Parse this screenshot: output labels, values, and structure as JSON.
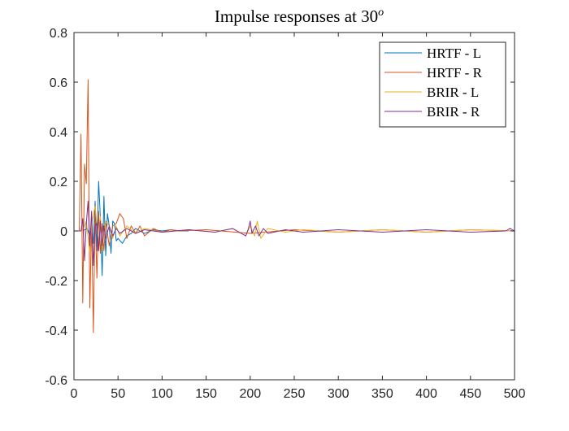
{
  "chart_data": {
    "type": "line",
    "title": "Impulse responses at 30",
    "title_superscript": "o",
    "xlabel": "",
    "ylabel": "",
    "xlim": [
      0,
      500
    ],
    "ylim": [
      -0.6,
      0.8
    ],
    "xticks": [
      0,
      50,
      100,
      150,
      200,
      250,
      300,
      350,
      400,
      450,
      500
    ],
    "yticks": [
      -0.6,
      -0.4,
      -0.2,
      0,
      0.2,
      0.4,
      0.6,
      0.8
    ],
    "xtick_labels": [
      "0",
      "50",
      "100",
      "150",
      "200",
      "250",
      "300",
      "350",
      "400",
      "450",
      "500"
    ],
    "ytick_labels": [
      "-0.6",
      "-0.4",
      "-0.2",
      "0",
      "0.2",
      "0.4",
      "0.6",
      "0.8"
    ],
    "grid": false,
    "box": true,
    "legend_position": "top-right",
    "series": [
      {
        "name": "HRTF - L",
        "color": "#0072BD",
        "x": [
          0,
          10,
          15,
          18,
          20,
          22,
          24,
          26,
          28,
          30,
          32,
          34,
          36,
          38,
          40,
          42,
          44,
          46,
          48,
          50,
          55,
          60,
          65,
          70,
          80,
          90,
          100,
          110,
          120,
          130
        ],
        "y": [
          0,
          0,
          0.01,
          -0.02,
          0.03,
          -0.05,
          0.12,
          -0.08,
          0.2,
          0.05,
          -0.18,
          0.14,
          -0.1,
          0.07,
          0.02,
          -0.09,
          0.04,
          0.03,
          -0.04,
          -0.03,
          -0.05,
          -0.02,
          -0.01,
          0.01,
          -0.01,
          0.005,
          0,
          0.005,
          0,
          0
        ]
      },
      {
        "name": "HRTF - R",
        "color": "#D95319",
        "x": [
          0,
          6,
          8,
          10,
          12,
          14,
          16,
          18,
          20,
          22,
          24,
          26,
          28,
          30,
          32,
          34,
          36,
          40,
          44,
          48,
          52,
          56,
          60,
          65,
          70,
          75,
          80,
          90,
          100,
          110,
          120,
          150,
          200,
          250,
          300,
          350,
          400,
          450,
          500
        ],
        "y": [
          0,
          0,
          0.39,
          -0.29,
          0.27,
          0.19,
          0.61,
          -0.31,
          0.05,
          -0.41,
          0.08,
          -0.19,
          0.08,
          -0.09,
          0.03,
          -0.08,
          0.04,
          -0.06,
          0.02,
          0.03,
          0.07,
          0.05,
          -0.03,
          0.02,
          -0.01,
          0.02,
          -0.02,
          0.01,
          -0.005,
          0.005,
          0,
          0.005,
          -0.01,
          0.005,
          -0.005,
          0.005,
          -0.005,
          0.005,
          0
        ]
      },
      {
        "name": "BRIR - L",
        "color": "#EDB120",
        "x": [
          0,
          10,
          14,
          18,
          20,
          24,
          28,
          30,
          32,
          36,
          40,
          44,
          48,
          52,
          60,
          70,
          80,
          100,
          130,
          160,
          180,
          190,
          195,
          200,
          205,
          208,
          212,
          220,
          240,
          260,
          300,
          350,
          400,
          450,
          500
        ],
        "y": [
          0,
          0,
          0.04,
          -0.09,
          0.03,
          0.1,
          -0.05,
          0.06,
          -0.08,
          0.04,
          0.02,
          -0.03,
          0.02,
          -0.02,
          0.02,
          -0.01,
          0.01,
          -0.005,
          0.005,
          -0.005,
          0.01,
          -0.01,
          -0.02,
          0.02,
          -0.02,
          0.04,
          -0.03,
          0.01,
          -0.005,
          0.005,
          -0.005,
          0.005,
          -0.005,
          0.005,
          0
        ]
      },
      {
        "name": "BRIR - R",
        "color": "#7E2F8E",
        "x": [
          0,
          8,
          10,
          12,
          14,
          16,
          18,
          20,
          22,
          24,
          26,
          28,
          30,
          32,
          34,
          36,
          40,
          44,
          48,
          52,
          60,
          70,
          80,
          100,
          130,
          160,
          180,
          190,
          195,
          198,
          200,
          202,
          206,
          210,
          215,
          220,
          240,
          260,
          300,
          350,
          400,
          450,
          490,
          495,
          500
        ],
        "y": [
          0,
          0,
          0.05,
          -0.12,
          0.03,
          0.12,
          -0.06,
          0.08,
          -0.14,
          0.02,
          0.03,
          -0.08,
          0.04,
          -0.06,
          0.02,
          -0.03,
          0.02,
          -0.02,
          0.01,
          -0.01,
          0.01,
          -0.01,
          0.005,
          -0.005,
          0.005,
          -0.005,
          0.01,
          -0.01,
          -0.02,
          0.01,
          0.04,
          -0.01,
          0.02,
          -0.02,
          0.01,
          -0.01,
          0.005,
          -0.005,
          0.005,
          -0.005,
          0.005,
          -0.005,
          0,
          0.01,
          0
        ]
      }
    ]
  }
}
